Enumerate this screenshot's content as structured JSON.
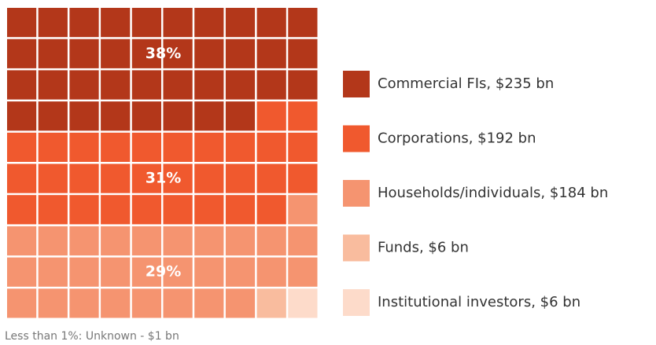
{
  "chart_data": {
    "type": "waffle",
    "series": [
      {
        "name": "Commercial FIs, $235 bn",
        "color": "#b3371a",
        "value": 38,
        "value_label": "38%"
      },
      {
        "name": "Corporations, $192 bn",
        "color": "#f0592e",
        "value": 31,
        "value_label": "31%"
      },
      {
        "name": "Households/individuals, $184 bn",
        "color": "#f59470",
        "value": 29,
        "value_label": "29%"
      },
      {
        "name": "Funds, $6 bn",
        "color": "#f9bc9e",
        "value": 1
      },
      {
        "name": "Institutional investors, $6 bn",
        "color": "#fddbca",
        "value": 1
      }
    ],
    "note": "Less than 1%: Unknown - $1 bn"
  }
}
